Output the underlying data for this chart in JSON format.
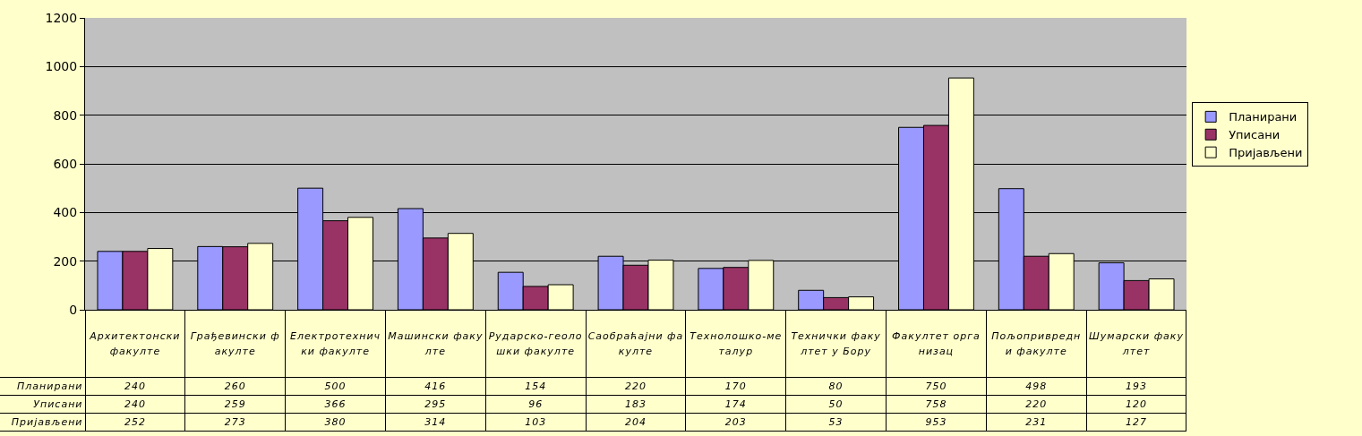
{
  "chart_data": {
    "type": "bar",
    "categories": [
      "Архитектонски факулте",
      "Грађевински факулте",
      "Електротехнички факулте",
      "Машински факулте",
      "Рударско-геолошки факулте",
      "Саобраћајни факулте",
      "Технолошко-металур",
      "Технички факултет у Бору",
      "Факултет организац",
      "Пољопривредни факулте",
      "Шумарски факултет"
    ],
    "series": [
      {
        "name": "Планирани",
        "color": "#9999ff",
        "values": [
          240,
          260,
          500,
          416,
          154,
          220,
          170,
          80,
          750,
          498,
          193
        ]
      },
      {
        "name": "Уписани",
        "color": "#993366",
        "values": [
          240,
          259,
          366,
          295,
          96,
          183,
          174,
          50,
          758,
          220,
          120
        ]
      },
      {
        "name": "Пријављени",
        "color": "#ffffcc",
        "values": [
          252,
          273,
          380,
          314,
          103,
          204,
          203,
          53,
          953,
          231,
          127
        ]
      }
    ],
    "ylim": [
      0,
      1200
    ],
    "yticks": [
      0,
      200,
      400,
      600,
      800,
      1000,
      1200
    ],
    "grid": "y",
    "legend": "right",
    "data_labels": true
  }
}
